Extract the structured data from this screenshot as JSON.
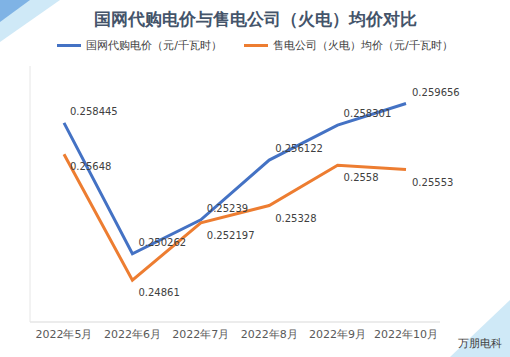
{
  "chart_data": {
    "type": "line",
    "title": "国网代购电价与售电公司（火电）均价对比",
    "categories": [
      "2022年5月",
      "2022年6月",
      "2022年7月",
      "2022年8月",
      "2022年9月",
      "2022年10月"
    ],
    "series": [
      {
        "name": "国网代购电价（元/千瓦时）",
        "color": "#4472c4",
        "values": [
          0.258445,
          0.250262,
          0.25239,
          0.256122,
          0.258301,
          0.259656
        ]
      },
      {
        "name": "售电公司（火电）均价（元/千瓦时）",
        "color": "#ed7d31",
        "values": [
          0.25648,
          0.24861,
          0.252197,
          0.25328,
          0.2558,
          0.25553
        ]
      }
    ],
    "ylim": [
      0.246,
      0.262
    ],
    "grid": false,
    "legend": "top",
    "data_labels": true,
    "tick_labels": "x",
    "annotations": [
      "万朋电科"
    ]
  }
}
